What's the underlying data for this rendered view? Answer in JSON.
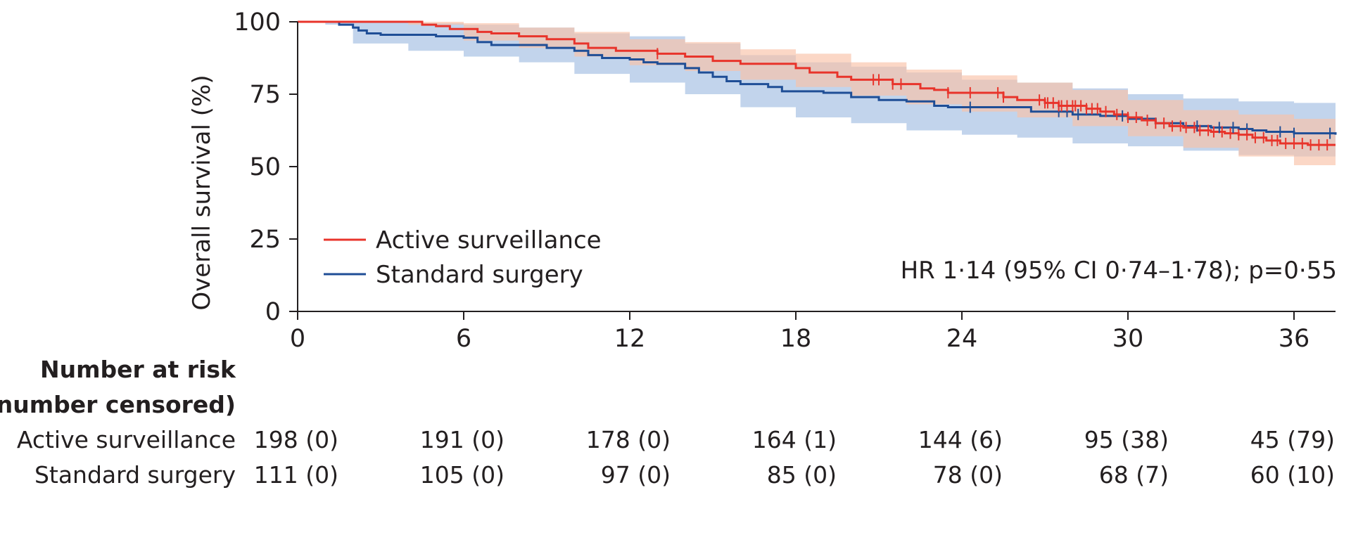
{
  "chart_data": {
    "type": "line",
    "subtype": "kaplan-meier survival curve",
    "ylabel": "Overall survival (%)",
    "xlabel": "",
    "xlim": [
      0,
      37.5
    ],
    "ylim": [
      0,
      100
    ],
    "x_ticks": [
      0,
      6,
      12,
      18,
      24,
      30,
      36
    ],
    "y_ticks": [
      0,
      25,
      50,
      75,
      100
    ],
    "grid": false,
    "legend_position": "lower-left",
    "annotation": "HR 1·14 (95% CI 0·74–1·78); p=0·55",
    "series": [
      {
        "name": "Active surveillance",
        "color": "#e8342b",
        "ci_color": "#f9c2a8",
        "steps": [
          [
            0,
            100
          ],
          [
            4,
            100
          ],
          [
            4.5,
            99
          ],
          [
            5,
            98.5
          ],
          [
            5.5,
            97.5
          ],
          [
            6.5,
            96.5
          ],
          [
            7,
            96
          ],
          [
            8,
            95
          ],
          [
            9,
            94
          ],
          [
            10,
            92.5
          ],
          [
            10.5,
            91
          ],
          [
            11.5,
            90
          ],
          [
            13,
            89
          ],
          [
            14,
            88
          ],
          [
            15,
            86.5
          ],
          [
            16,
            85.5
          ],
          [
            18,
            84
          ],
          [
            18.5,
            82.5
          ],
          [
            19.5,
            81
          ],
          [
            20,
            80
          ],
          [
            21.5,
            78.5
          ],
          [
            22.5,
            77
          ],
          [
            23,
            76.5
          ],
          [
            23.5,
            75.5
          ],
          [
            25.5,
            74
          ],
          [
            26,
            73
          ],
          [
            27,
            72
          ],
          [
            27.5,
            71
          ],
          [
            28.5,
            70
          ],
          [
            29,
            69
          ],
          [
            29.5,
            68
          ],
          [
            30,
            67
          ],
          [
            30.5,
            66
          ],
          [
            31,
            65
          ],
          [
            31.5,
            64
          ],
          [
            32,
            63.5
          ],
          [
            32.5,
            62.5
          ],
          [
            33,
            62
          ],
          [
            33.5,
            61.5
          ],
          [
            34,
            61
          ],
          [
            34.5,
            60
          ],
          [
            35,
            59
          ],
          [
            35.5,
            58
          ],
          [
            36.5,
            57.5
          ],
          [
            37.5,
            57.5
          ]
        ],
        "ci_upper": [
          [
            0,
            100
          ],
          [
            4,
            100
          ],
          [
            6,
            99.5
          ],
          [
            8,
            98
          ],
          [
            10,
            96.5
          ],
          [
            12,
            94
          ],
          [
            14,
            93
          ],
          [
            16,
            90.5
          ],
          [
            18,
            89
          ],
          [
            20,
            86
          ],
          [
            22,
            83.5
          ],
          [
            24,
            81.5
          ],
          [
            26,
            79
          ],
          [
            28,
            76.5
          ],
          [
            30,
            73
          ],
          [
            32,
            69.5
          ],
          [
            34,
            68
          ],
          [
            36,
            66.5
          ],
          [
            37.5,
            66
          ]
        ],
        "ci_lower": [
          [
            0,
            100
          ],
          [
            4,
            99
          ],
          [
            6,
            93.5
          ],
          [
            8,
            91
          ],
          [
            10,
            88
          ],
          [
            12,
            85
          ],
          [
            14,
            83
          ],
          [
            16,
            80
          ],
          [
            18,
            77.5
          ],
          [
            20,
            74.5
          ],
          [
            22,
            71.5
          ],
          [
            24,
            69
          ],
          [
            26,
            67
          ],
          [
            28,
            64
          ],
          [
            30,
            60.5
          ],
          [
            32,
            56.5
          ],
          [
            34,
            53.5
          ],
          [
            36,
            50.5
          ],
          [
            37.5,
            50
          ]
        ],
        "censor_x": [
          13,
          20.8,
          21,
          21.5,
          21.8,
          23.5,
          24.3,
          25.3,
          25.5,
          26.8,
          27,
          27.1,
          27.3,
          27.5,
          27.6,
          27.8,
          28,
          28.1,
          28.3,
          28.5,
          28.7,
          28.9,
          29.2,
          29.6,
          30,
          30.3,
          30.7,
          31,
          31.3,
          31.6,
          31.9,
          32.1,
          32.4,
          32.6,
          32.9,
          33.1,
          33.4,
          33.7,
          34,
          34.3,
          34.6,
          34.9,
          35.2,
          35.4,
          35.7,
          36,
          36.3,
          36.6,
          36.9,
          37.2
        ]
      },
      {
        "name": "Standard surgery",
        "color": "#1f4e96",
        "ci_color": "#aec5e6",
        "steps": [
          [
            0,
            100
          ],
          [
            1,
            100
          ],
          [
            1.5,
            99
          ],
          [
            2,
            98
          ],
          [
            2.2,
            97
          ],
          [
            2.5,
            96
          ],
          [
            3,
            95.5
          ],
          [
            5,
            95
          ],
          [
            6,
            94.5
          ],
          [
            6.5,
            93
          ],
          [
            7,
            92
          ],
          [
            9,
            91
          ],
          [
            10,
            90
          ],
          [
            10.5,
            88.5
          ],
          [
            11,
            87.5
          ],
          [
            12,
            87
          ],
          [
            12.5,
            86
          ],
          [
            13,
            85.5
          ],
          [
            14,
            84
          ],
          [
            14.5,
            82.5
          ],
          [
            15,
            81
          ],
          [
            15.5,
            79.5
          ],
          [
            16,
            78.5
          ],
          [
            17,
            77.5
          ],
          [
            17.5,
            76
          ],
          [
            19,
            75.5
          ],
          [
            20,
            74
          ],
          [
            21,
            73
          ],
          [
            22,
            72.5
          ],
          [
            23,
            71
          ],
          [
            23.5,
            70.5
          ],
          [
            26,
            70.5
          ],
          [
            26.5,
            69
          ],
          [
            28,
            68
          ],
          [
            29,
            67.5
          ],
          [
            30,
            66.5
          ],
          [
            31,
            65
          ],
          [
            32,
            64
          ],
          [
            33,
            63.5
          ],
          [
            34,
            63
          ],
          [
            34.5,
            62.5
          ],
          [
            35,
            62
          ],
          [
            36,
            61.5
          ],
          [
            37.5,
            61
          ]
        ],
        "ci_upper": [
          [
            0,
            100
          ],
          [
            1,
            100
          ],
          [
            2,
            100
          ],
          [
            4,
            99.5
          ],
          [
            6,
            99
          ],
          [
            8,
            98
          ],
          [
            10,
            96
          ],
          [
            12,
            95
          ],
          [
            14,
            92.5
          ],
          [
            16,
            88.5
          ],
          [
            18,
            86
          ],
          [
            20,
            84.5
          ],
          [
            22,
            82.5
          ],
          [
            24,
            80
          ],
          [
            26,
            79
          ],
          [
            28,
            77
          ],
          [
            30,
            75
          ],
          [
            32,
            73.5
          ],
          [
            34,
            72.5
          ],
          [
            36,
            72
          ],
          [
            37.5,
            71
          ]
        ],
        "ci_lower": [
          [
            0,
            100
          ],
          [
            1,
            99
          ],
          [
            2,
            92.5
          ],
          [
            4,
            90
          ],
          [
            6,
            88
          ],
          [
            8,
            86
          ],
          [
            10,
            82
          ],
          [
            12,
            79
          ],
          [
            14,
            75
          ],
          [
            16,
            70.5
          ],
          [
            18,
            67
          ],
          [
            20,
            65
          ],
          [
            22,
            62.5
          ],
          [
            24,
            61
          ],
          [
            26,
            60
          ],
          [
            28,
            58
          ],
          [
            30,
            57
          ],
          [
            32,
            55.5
          ],
          [
            34,
            54
          ],
          [
            36,
            53.5
          ],
          [
            37.5,
            53
          ]
        ],
        "censor_x": [
          24.3,
          27.5,
          27.8,
          28.2,
          29.8,
          32.5,
          33.3,
          33.8,
          34.3,
          35.5,
          36,
          37.3
        ]
      }
    ]
  },
  "risk_table": {
    "title_line1": "Number at risk",
    "title_line2": "(number censored)",
    "rows": [
      {
        "label": "Active surveillance",
        "values": [
          "198 (0)",
          "191 (0)",
          "178 (0)",
          "164 (1)",
          "144 (6)",
          "95 (38)",
          "45 (79)"
        ]
      },
      {
        "label": "Standard surgery",
        "values": [
          "111 (0)",
          "105 (0)",
          "97 (0)",
          "85 (0)",
          "78 (0)",
          "68 (7)",
          "60 (10)"
        ]
      }
    ]
  }
}
